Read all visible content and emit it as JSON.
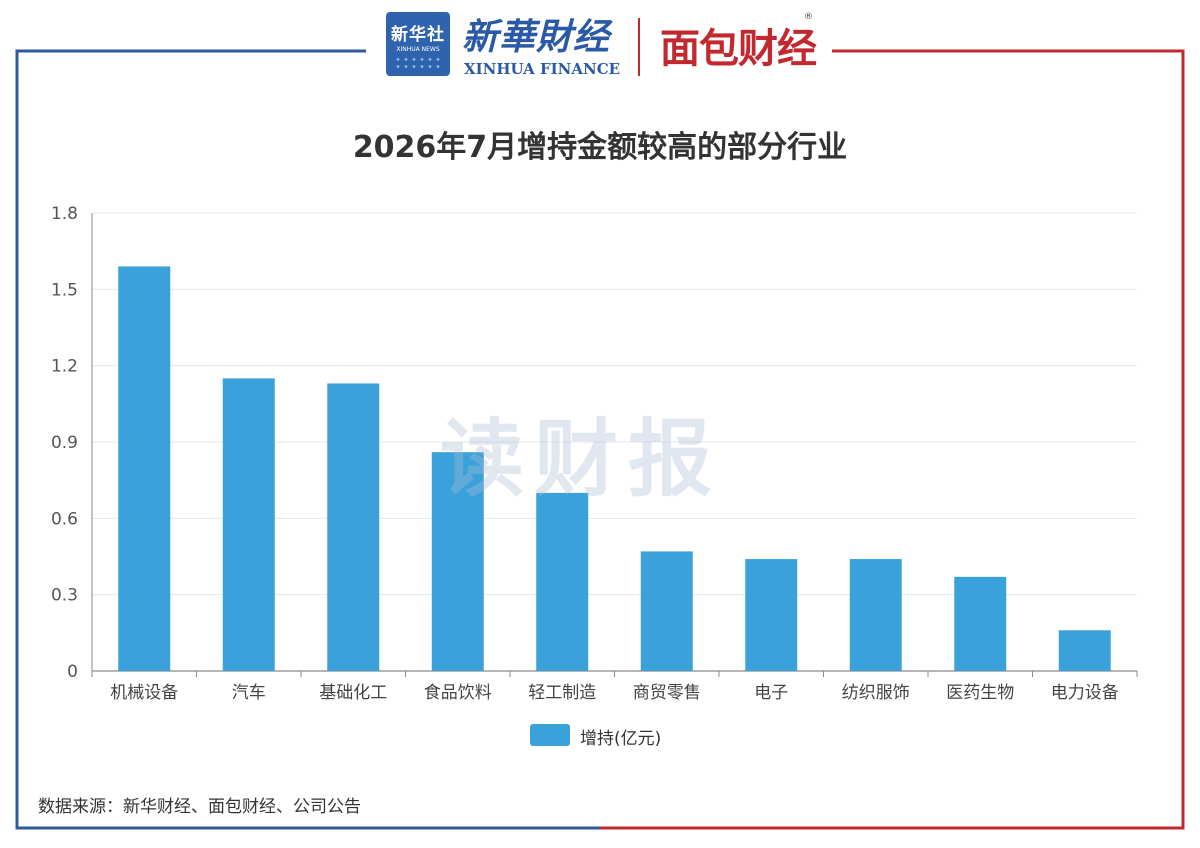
{
  "header": {
    "xinhua_badge_cn": "新华社",
    "xinhua_badge_en": "XINHUA NEWS",
    "xinhua_finance_cn": "新華財经",
    "xinhua_finance_en": "XINHUA FINANCE",
    "mianbao_logo": "面包财经",
    "registered_mark": "®",
    "frame_color_left": "#2f5a9e",
    "frame_color_right": "#c4282f"
  },
  "watermark": "读财报",
  "chart_data": {
    "type": "bar",
    "title": "2026年7月增持金额较高的部分行业",
    "categories": [
      "机械设备",
      "汽车",
      "基础化工",
      "食品饮料",
      "轻工制造",
      "商贸零售",
      "电子",
      "纺织服饰",
      "医药生物",
      "电力设备"
    ],
    "series": [
      {
        "name": "增持(亿元)",
        "values": [
          1.59,
          1.15,
          1.13,
          0.86,
          0.7,
          0.47,
          0.44,
          0.44,
          0.37,
          0.16
        ],
        "color": "#3ba1db"
      }
    ],
    "ylim": [
      0,
      1.8
    ],
    "yticks": [
      0,
      0.3,
      0.6,
      0.9,
      1.2,
      1.5,
      1.8
    ],
    "grid": true,
    "legend_position": "bottom-center"
  },
  "footer": {
    "source": "数据来源：新华财经、面包财经、公司公告"
  }
}
